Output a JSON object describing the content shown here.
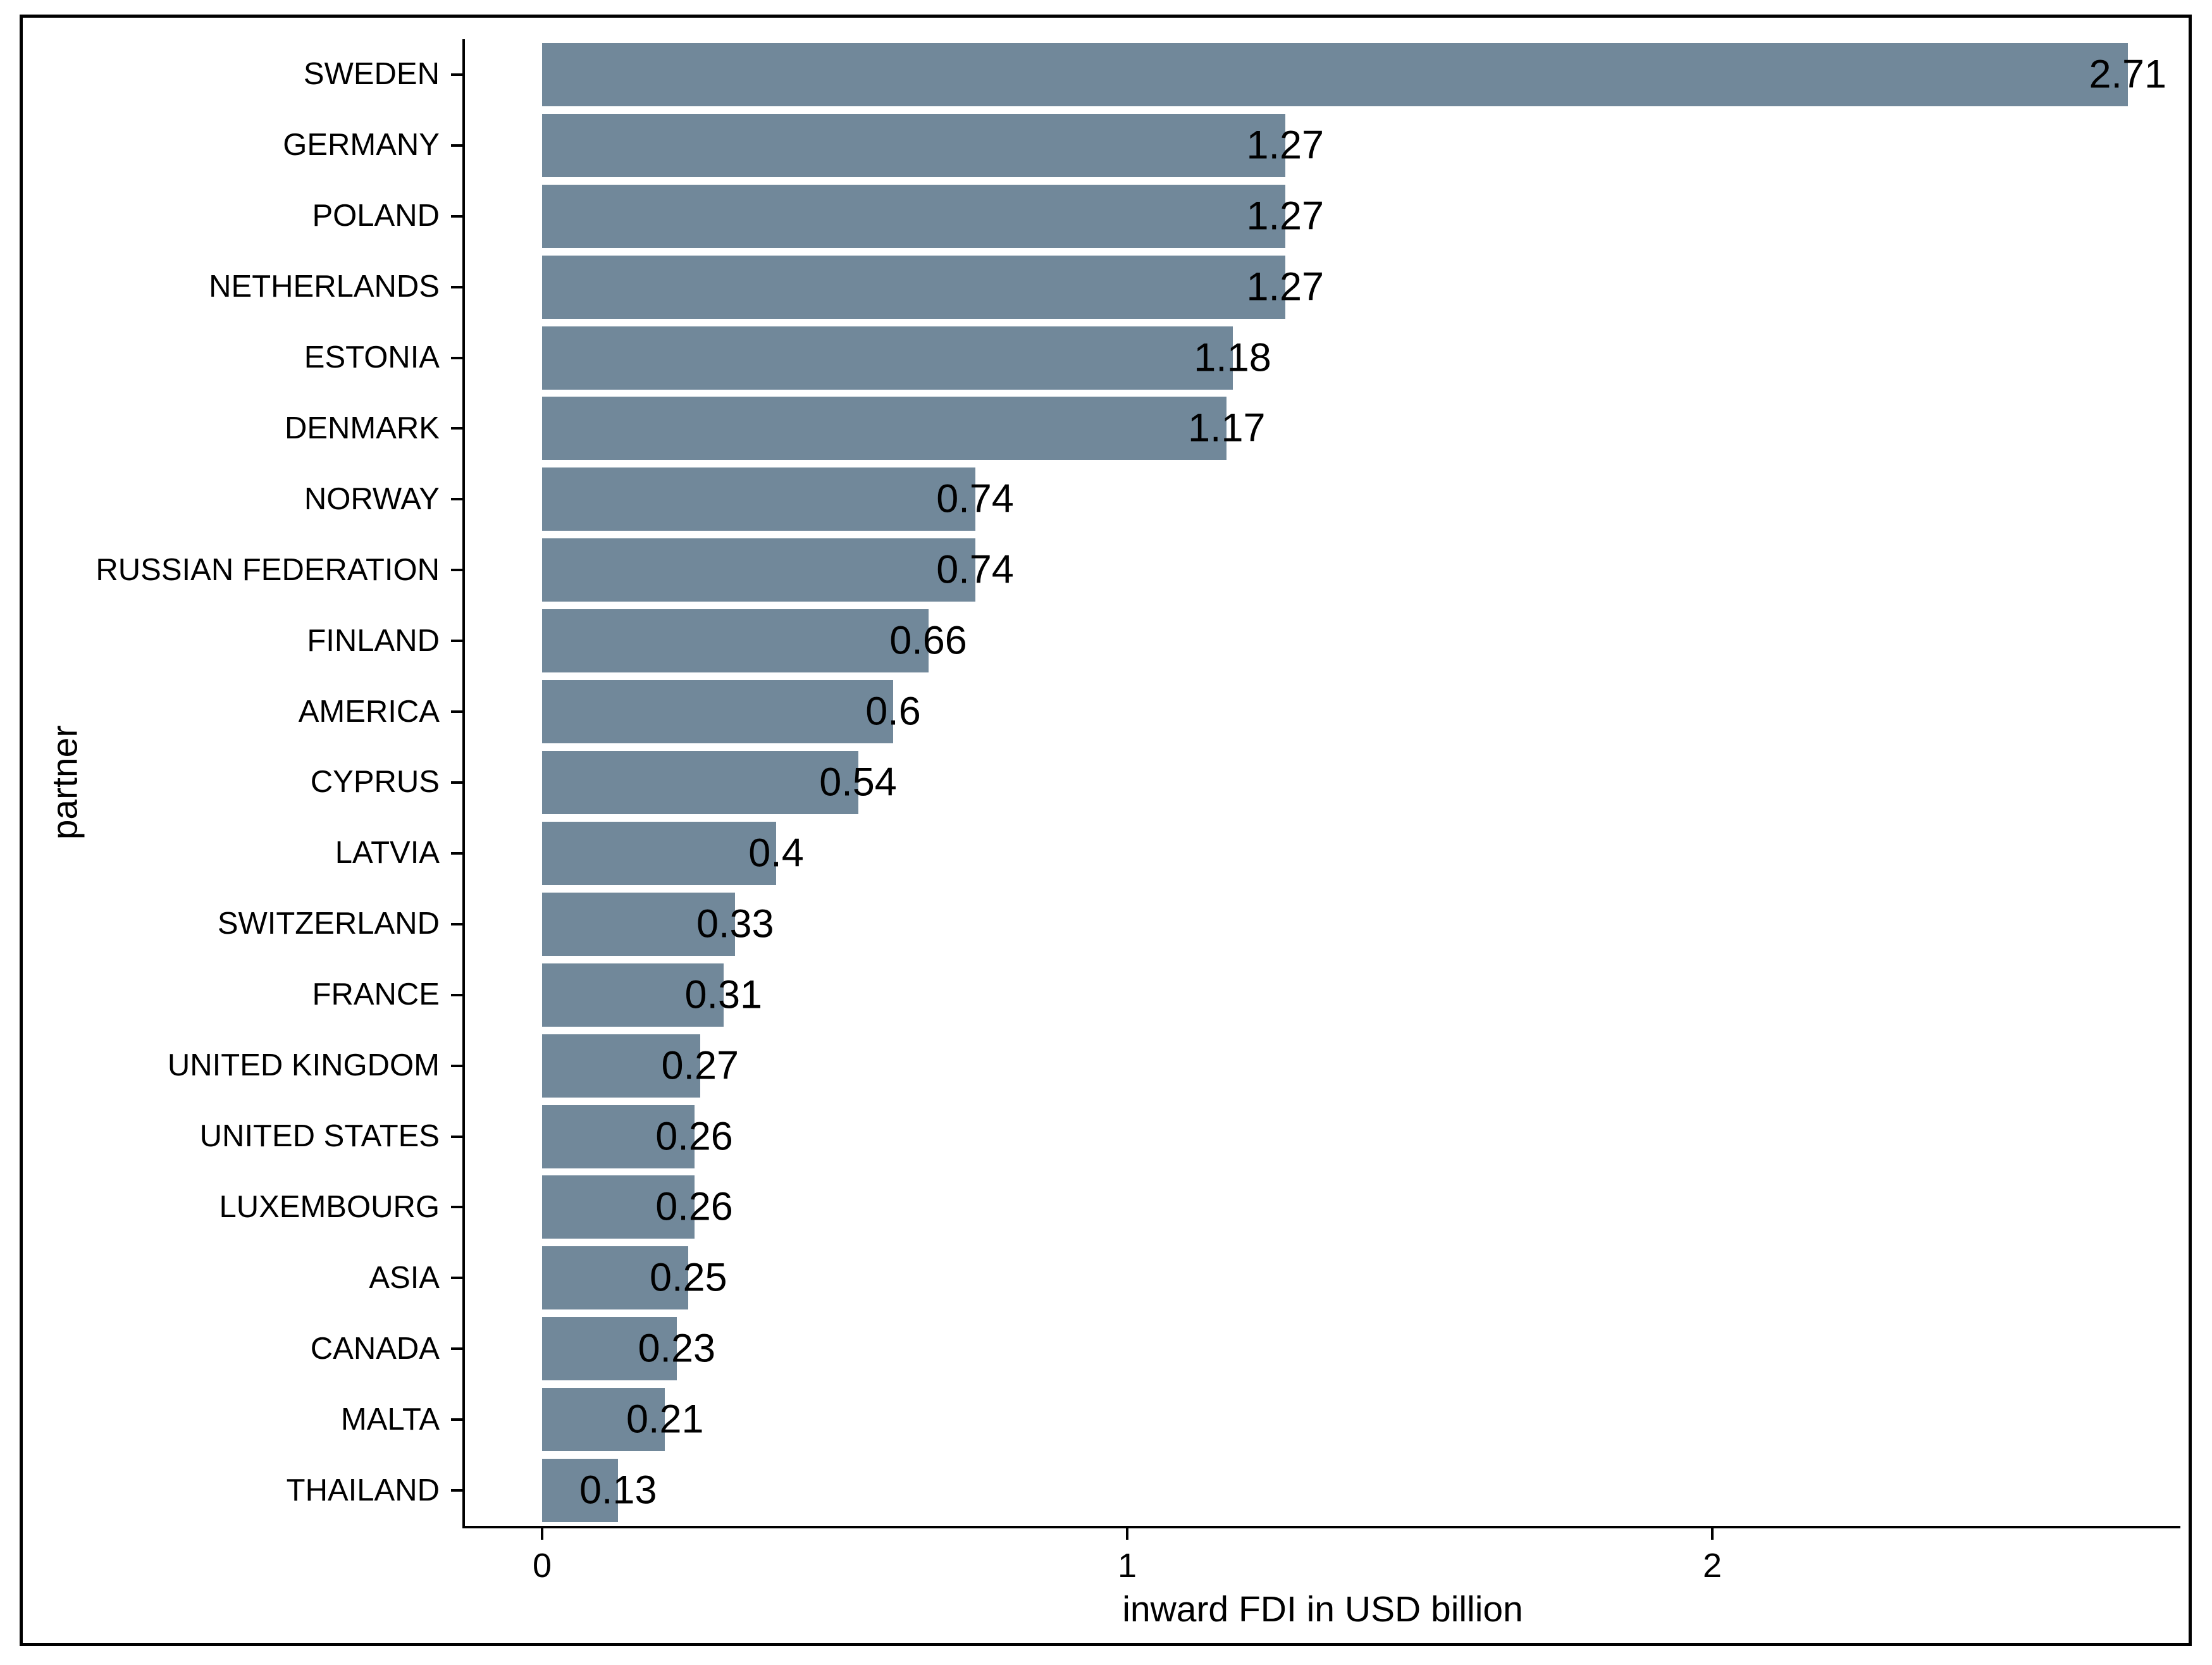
{
  "figure": {
    "background": "#FFFFFF",
    "border_color": "#000000"
  },
  "chart_data": {
    "type": "bar",
    "orientation": "horizontal",
    "title": "",
    "xlabel": "inward FDI in USD billion",
    "ylabel": "partner",
    "categories": [
      "SWEDEN",
      "GERMANY",
      "POLAND",
      "NETHERLANDS",
      "ESTONIA",
      "DENMARK",
      "NORWAY",
      "RUSSIAN FEDERATION",
      "FINLAND",
      "AMERICA",
      "CYPRUS",
      "LATVIA",
      "SWITZERLAND",
      "FRANCE",
      "UNITED KINGDOM",
      "UNITED STATES",
      "LUXEMBOURG",
      "ASIA",
      "CANADA",
      "MALTA",
      "THAILAND"
    ],
    "values": [
      2.71,
      1.27,
      1.27,
      1.27,
      1.18,
      1.17,
      0.74,
      0.74,
      0.66,
      0.6,
      0.54,
      0.4,
      0.33,
      0.31,
      0.27,
      0.26,
      0.26,
      0.25,
      0.23,
      0.21,
      0.13
    ],
    "value_labels": [
      "2.71",
      "1.27",
      "1.27",
      "1.27",
      "1.18",
      "1.17",
      "0.74",
      "0.74",
      "0.66",
      "0.6",
      "0.54",
      "0.4",
      "0.33",
      "0.31",
      "0.27",
      "0.26",
      "0.26",
      "0.25",
      "0.23",
      "0.21",
      "0.13"
    ],
    "x_ticks": [
      0,
      1,
      2
    ],
    "x_tick_labels": [
      "0",
      "1",
      "2"
    ],
    "xlim": [
      -0.13,
      2.81
    ],
    "grid": false,
    "legend_position": "none",
    "bar_color": "#71889A",
    "axis_color": "#000000",
    "text_color": "#000000",
    "value_label_position": "centered-on-bar-end"
  }
}
